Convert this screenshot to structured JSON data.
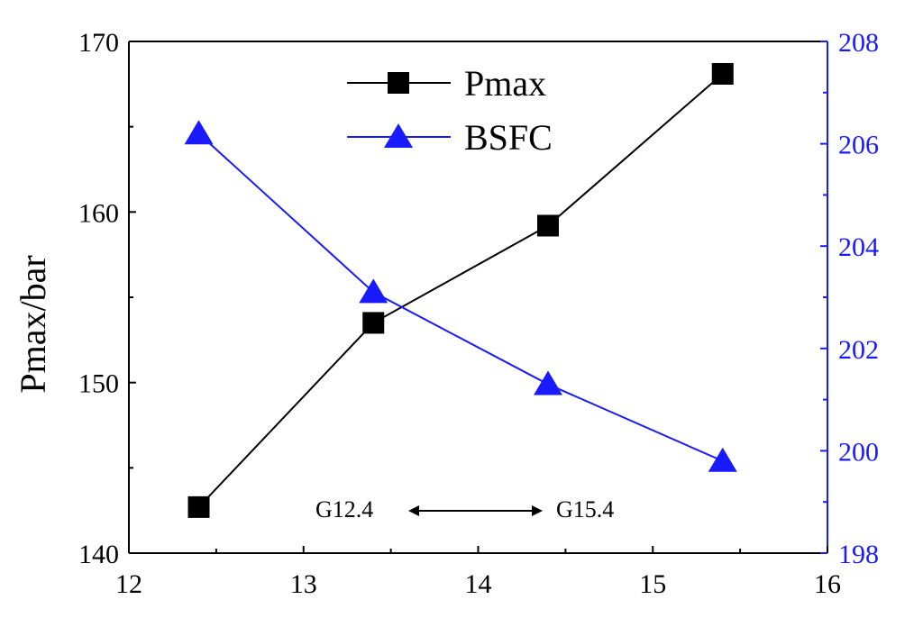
{
  "chart_data": {
    "type": "line",
    "title": "",
    "x": [
      12.4,
      13.4,
      14.4,
      15.4
    ],
    "xlim": [
      12,
      16
    ],
    "xticks": [
      "12",
      "13",
      "14",
      "15",
      "16"
    ],
    "xlabel": "",
    "y_left": {
      "label": "Pmax/bar",
      "lim": [
        140,
        170
      ],
      "ticks": [
        "140",
        "150",
        "160",
        "170"
      ]
    },
    "y_right": {
      "label": "",
      "lim": [
        198,
        208
      ],
      "ticks": [
        "198",
        "200",
        "202",
        "204",
        "206",
        "208"
      ],
      "color": "#1a1aff"
    },
    "series": [
      {
        "name": "Pmax",
        "axis": "left",
        "marker": "square",
        "color": "#000000",
        "values": [
          142.7,
          153.5,
          159.2,
          168.1
        ]
      },
      {
        "name": "BSFC",
        "axis": "right",
        "marker": "triangle",
        "color": "#1a1aff",
        "values": [
          206.2,
          203.1,
          201.3,
          199.8
        ]
      }
    ],
    "legend": "top-center",
    "grid": false,
    "annotation": {
      "left": "G12.4",
      "right": "G15.4",
      "arrow": "double-headed"
    }
  }
}
